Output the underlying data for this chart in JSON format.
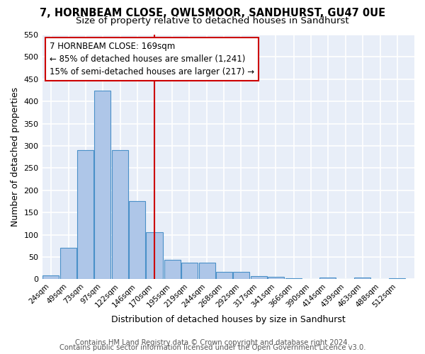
{
  "title1": "7, HORNBEAM CLOSE, OWLSMOOR, SANDHURST, GU47 0UE",
  "title2": "Size of property relative to detached houses in Sandhurst",
  "xlabel": "Distribution of detached houses by size in Sandhurst",
  "ylabel": "Number of detached properties",
  "footnote1": "Contains HM Land Registry data © Crown copyright and database right 2024.",
  "footnote2": "Contains public sector information licensed under the Open Government Licence v3.0.",
  "annotation_line1": "7 HORNBEAM CLOSE: 169sqm",
  "annotation_line2": "← 85% of detached houses are smaller (1,241)",
  "annotation_line3": "15% of semi-detached houses are larger (217) →",
  "bar_color": "#aec6e8",
  "bar_edge_color": "#4a90c8",
  "vline_color": "#cc0000",
  "vline_x": 170,
  "categories": [
    24,
    49,
    73,
    97,
    122,
    146,
    170,
    195,
    219,
    244,
    268,
    292,
    317,
    341,
    366,
    390,
    414,
    439,
    463,
    488,
    512
  ],
  "values": [
    8,
    71,
    291,
    425,
    291,
    176,
    105,
    44,
    37,
    38,
    16,
    16,
    7,
    5,
    3,
    0,
    4,
    0,
    4,
    0,
    3
  ],
  "ylim": [
    0,
    550
  ],
  "yticks": [
    0,
    50,
    100,
    150,
    200,
    250,
    300,
    350,
    400,
    450,
    500,
    550
  ],
  "bin_width": 24,
  "xlim_left": 12,
  "xlim_right": 536,
  "background_color": "#e8eef8",
  "grid_color": "#ffffff",
  "title1_fontsize": 10.5,
  "title2_fontsize": 9.5,
  "axis_label_fontsize": 9,
  "tick_fontsize": 8,
  "footnote_fontsize": 7.2,
  "annotation_fontsize": 8.5
}
